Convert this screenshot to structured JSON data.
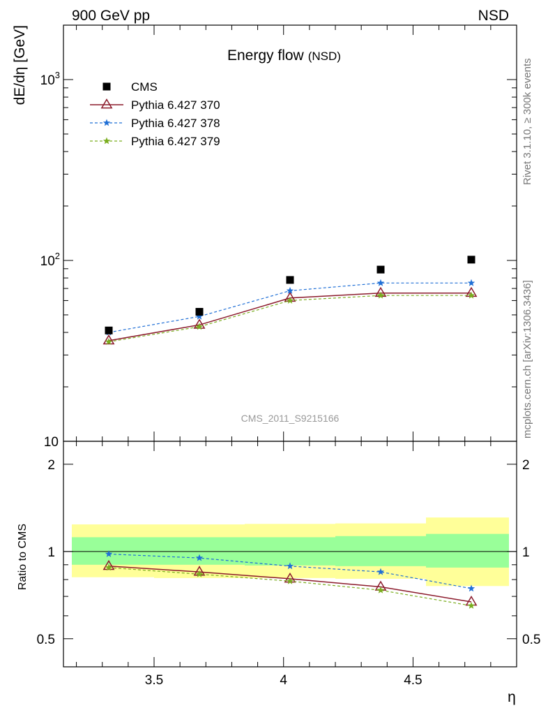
{
  "header": {
    "top_left": "900 GeV pp",
    "top_right": "NSD"
  },
  "side_labels": {
    "rivet": "Rivet 3.1.10, ≥ 300k events",
    "mcplots": "mcplots.cern.ch [arXiv:1306.3436]"
  },
  "chart_data": [
    {
      "type": "line",
      "title": "Energy flow",
      "title_suffix": "(NSD)",
      "watermark": "CMS_2011_S9215166",
      "ylabel": "dE/dη [GeV]",
      "yscale": "log",
      "ylim": [
        10,
        2000
      ],
      "xlim": [
        3.15,
        4.9
      ],
      "y_tick_labels": [
        "10",
        "10",
        "10"
      ],
      "y_tick_exponents": [
        "",
        "2",
        "3"
      ],
      "x": [
        3.325,
        3.675,
        4.025,
        4.375,
        4.725
      ],
      "series": [
        {
          "name": "CMS",
          "style": "data",
          "marker": "square",
          "color": "#000000",
          "values": [
            41,
            52,
            78,
            89,
            101
          ]
        },
        {
          "name": "Pythia 6.427 370",
          "style": "solid",
          "marker": "triangle",
          "color": "#8b1a2b",
          "values": [
            36,
            44,
            62,
            66,
            66
          ]
        },
        {
          "name": "Pythia 6.427 378",
          "style": "dashed",
          "marker": "star",
          "color": "#1f6fd6",
          "values": [
            40,
            49,
            68,
            75,
            75
          ]
        },
        {
          "name": "Pythia 6.427 379",
          "style": "dashed",
          "marker": "star",
          "color": "#7aad1e",
          "values": [
            35.5,
            43,
            60,
            64,
            64
          ]
        }
      ]
    },
    {
      "type": "line",
      "ylabel": "Ratio to CMS",
      "xlabel": "η",
      "ylim": [
        0.4,
        2.4
      ],
      "xlim": [
        3.15,
        4.9
      ],
      "y_ticks": [
        0.5,
        1,
        2
      ],
      "y_tick_labels": [
        "0.5",
        "1",
        "2"
      ],
      "x_ticks": [
        3.5,
        4,
        4.5
      ],
      "x_tick_labels": [
        "3.5",
        "4",
        "4.5"
      ],
      "bins": [
        [
          3.15,
          3.5
        ],
        [
          3.5,
          3.85
        ],
        [
          3.85,
          4.2
        ],
        [
          4.2,
          4.55
        ],
        [
          4.55,
          4.9
        ]
      ],
      "band_yellow": [
        [
          0.815,
          1.24
        ],
        [
          0.81,
          1.24
        ],
        [
          0.81,
          1.245
        ],
        [
          0.805,
          1.25
        ],
        [
          0.76,
          1.31
        ]
      ],
      "band_green": [
        [
          0.9,
          1.12
        ],
        [
          0.9,
          1.12
        ],
        [
          0.895,
          1.12
        ],
        [
          0.89,
          1.13
        ],
        [
          0.88,
          1.15
        ]
      ],
      "x": [
        3.325,
        3.675,
        4.025,
        4.375,
        4.725
      ],
      "series": [
        {
          "name": "Pythia 6.427 370",
          "style": "solid",
          "marker": "triangle",
          "color": "#8b1a2b",
          "values": [
            0.89,
            0.85,
            0.805,
            0.755,
            0.67
          ]
        },
        {
          "name": "Pythia 6.427 378",
          "style": "dashed",
          "marker": "star",
          "color": "#1f6fd6",
          "values": [
            0.98,
            0.95,
            0.89,
            0.85,
            0.745
          ]
        },
        {
          "name": "Pythia 6.427 379",
          "style": "dashed",
          "marker": "star",
          "color": "#7aad1e",
          "values": [
            0.88,
            0.835,
            0.79,
            0.735,
            0.65
          ]
        }
      ]
    }
  ]
}
